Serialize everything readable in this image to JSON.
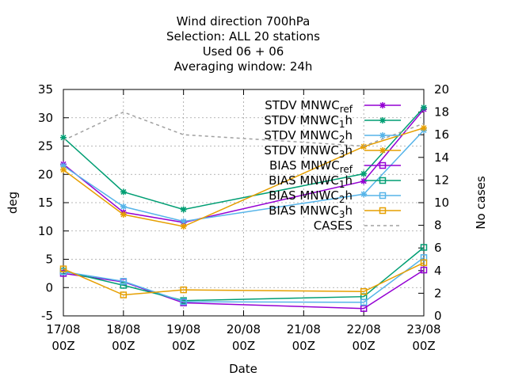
{
  "chart_data": {
    "type": "line",
    "title_lines": [
      "Wind direction 700hPa",
      "Selection: ALL     20 stations",
      "Used  06 + 06",
      "Averaging window: 24h"
    ],
    "xlabel": "Date",
    "ylabel": "deg",
    "y2label": "No cases",
    "x_ticks": [
      {
        "top": "17/08",
        "bottom": "00Z"
      },
      {
        "top": "18/08",
        "bottom": "00Z"
      },
      {
        "top": "19/08",
        "bottom": "00Z"
      },
      {
        "top": "20/08",
        "bottom": "00Z"
      },
      {
        "top": "21/08",
        "bottom": "00Z"
      },
      {
        "top": "22/08",
        "bottom": "00Z"
      },
      {
        "top": "23/08",
        "bottom": "00Z"
      }
    ],
    "ylim": [
      -5,
      35
    ],
    "y_ticks": [
      "-5",
      "0",
      "5",
      "10",
      "15",
      "20",
      "25",
      "30",
      "35"
    ],
    "y2lim": [
      0,
      20
    ],
    "y2_ticks": [
      "0",
      "2",
      "4",
      "6",
      "8",
      "10",
      "12",
      "14",
      "16",
      "18",
      "20"
    ],
    "grid": true,
    "legend_position": "top-right",
    "x_points": [
      0,
      1,
      2,
      5,
      6
    ],
    "series": [
      {
        "name_parts": [
          "STDV MNWC",
          "ref",
          ""
        ],
        "color": "#9400d3",
        "marker": "star",
        "dash": false,
        "values": [
          21.8,
          13.3,
          11.5,
          18.8,
          31.5
        ]
      },
      {
        "name_parts": [
          "STDV MNWC",
          "1",
          "h"
        ],
        "color": "#009e73",
        "marker": "star",
        "dash": false,
        "values": [
          26.5,
          16.9,
          13.8,
          20.1,
          31.8
        ]
      },
      {
        "name_parts": [
          "STDV MNWC",
          "2",
          "h"
        ],
        "color": "#56b4e9",
        "marker": "star",
        "dash": false,
        "values": [
          21.5,
          14.3,
          11.7,
          16.5,
          27.8
        ]
      },
      {
        "name_parts": [
          "STDV MNWC",
          "3",
          "h"
        ],
        "color": "#e69f00",
        "marker": "star",
        "dash": false,
        "values": [
          20.8,
          12.9,
          10.8,
          24.9,
          28.2
        ]
      },
      {
        "name_parts": [
          "BIAS MNWC",
          "ref",
          ""
        ],
        "color": "#9400d3",
        "marker": "square",
        "dash": false,
        "values": [
          2.5,
          1.0,
          -2.7,
          -3.7,
          3.1
        ]
      },
      {
        "name_parts": [
          "BIAS MNWC",
          "1",
          "h"
        ],
        "color": "#009e73",
        "marker": "square",
        "dash": false,
        "values": [
          2.9,
          0.4,
          -2.3,
          -1.6,
          7.1
        ]
      },
      {
        "name_parts": [
          "BIAS MNWC",
          "2",
          "h"
        ],
        "color": "#56b4e9",
        "marker": "square",
        "dash": false,
        "values": [
          2.8,
          1.1,
          -2.5,
          -2.6,
          5.3
        ]
      },
      {
        "name_parts": [
          "BIAS MNWC",
          "3",
          "h"
        ],
        "color": "#e69f00",
        "marker": "square",
        "dash": false,
        "values": [
          3.3,
          -1.3,
          -0.4,
          -0.7,
          4.4
        ]
      },
      {
        "name_parts": [
          "CASES",
          "",
          ""
        ],
        "color": "#a0a0a0",
        "marker": "none",
        "dash": true,
        "axis": "y2",
        "values": [
          15.5,
          18,
          16,
          15,
          17
        ]
      }
    ]
  }
}
